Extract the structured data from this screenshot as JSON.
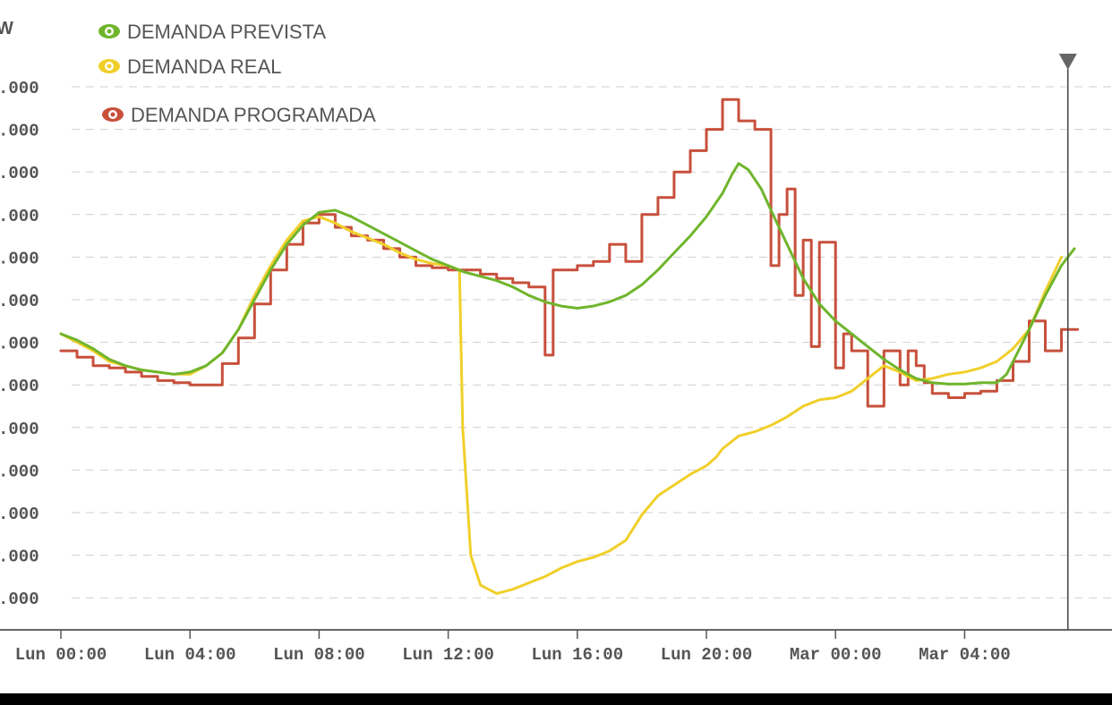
{
  "chart_data": {
    "type": "line",
    "unit_label": "W",
    "y_tick_labels": [
      ".000",
      ".000",
      ".000",
      ".000",
      ".000",
      ".000",
      ".000",
      ".000",
      ".000",
      ".000",
      ".000",
      ".000",
      ".000"
    ],
    "x_tick_labels": [
      "Lun 00:00",
      "Lun 04:00",
      "Lun 08:00",
      "Lun 12:00",
      "Lun 16:00",
      "Lun 20:00",
      "Mar 00:00",
      "Mar 04:00"
    ],
    "x_tick_hours": [
      0,
      4,
      8,
      12,
      16,
      20,
      24,
      28
    ],
    "xlim": [
      0,
      31.5
    ],
    "ylim": [
      1,
      14
    ],
    "grid": true,
    "legend_position": "top-left",
    "cursor_hour": 31.2,
    "series": [
      {
        "name": "DEMANDA PREVISTA",
        "color": "#6fb52c",
        "step": false,
        "x": [
          0,
          0.5,
          1,
          1.5,
          2,
          2.5,
          3,
          3.5,
          4,
          4.5,
          5,
          5.5,
          6,
          6.5,
          7,
          7.5,
          8,
          8.5,
          9,
          9.5,
          10,
          10.5,
          11,
          11.5,
          12,
          12.5,
          13,
          13.5,
          14,
          14.5,
          15,
          15.5,
          16,
          16.5,
          17,
          17.5,
          18,
          18.5,
          19,
          19.5,
          20,
          20.5,
          20.8,
          21,
          21.3,
          21.7,
          22,
          22.5,
          23,
          23.5,
          24,
          24.5,
          25,
          25.5,
          26,
          26.5,
          27,
          27.5,
          28,
          28.5,
          29,
          29.3,
          29.6,
          30,
          30.5,
          31,
          31.4
        ],
        "y": [
          7.7,
          7.55,
          7.35,
          7.1,
          6.95,
          6.85,
          6.8,
          6.75,
          6.8,
          6.95,
          7.25,
          7.8,
          8.5,
          9.2,
          9.8,
          10.25,
          10.55,
          10.6,
          10.45,
          10.25,
          10.05,
          9.85,
          9.65,
          9.45,
          9.3,
          9.15,
          9.05,
          8.95,
          8.8,
          8.6,
          8.45,
          8.35,
          8.3,
          8.35,
          8.45,
          8.6,
          8.85,
          9.2,
          9.6,
          10.0,
          10.45,
          11.0,
          11.45,
          11.7,
          11.55,
          11.1,
          10.6,
          9.8,
          9.0,
          8.4,
          8.0,
          7.7,
          7.4,
          7.1,
          6.85,
          6.65,
          6.55,
          6.52,
          6.52,
          6.55,
          6.55,
          6.75,
          7.2,
          7.8,
          8.6,
          9.3,
          9.7
        ]
      },
      {
        "name": "DEMANDA REAL",
        "color": "#f0cf2a",
        "step": false,
        "x": [
          0,
          0.5,
          1,
          1.5,
          2,
          2.5,
          3,
          3.5,
          4,
          4.5,
          5,
          5.5,
          6,
          6.5,
          7,
          7.5,
          8,
          8.5,
          9,
          9.5,
          10,
          10.5,
          11,
          11.5,
          12,
          12.35,
          12.45,
          12.7,
          13,
          13.5,
          14,
          14.5,
          15,
          15.5,
          16,
          16.5,
          17,
          17.5,
          18,
          18.5,
          19,
          19.5,
          20,
          20.3,
          20.5,
          21,
          21.5,
          22,
          22.5,
          23,
          23.5,
          24,
          24.5,
          25,
          25.5,
          26,
          26.5,
          27,
          27.5,
          28,
          28.5,
          29,
          29.5,
          30,
          30.5,
          31
        ],
        "y": [
          7.7,
          7.5,
          7.3,
          7.05,
          6.95,
          6.85,
          6.8,
          6.75,
          6.75,
          6.95,
          7.25,
          7.8,
          8.6,
          9.3,
          9.9,
          10.35,
          10.45,
          10.3,
          10.1,
          9.95,
          9.8,
          9.6,
          9.45,
          9.35,
          9.3,
          9.2,
          5.5,
          2.5,
          1.8,
          1.6,
          1.7,
          1.85,
          2.0,
          2.2,
          2.35,
          2.45,
          2.6,
          2.85,
          3.45,
          3.9,
          4.15,
          4.4,
          4.6,
          4.8,
          5.0,
          5.3,
          5.4,
          5.55,
          5.75,
          6.0,
          6.15,
          6.2,
          6.35,
          6.65,
          6.95,
          6.8,
          6.6,
          6.65,
          6.75,
          6.8,
          6.9,
          7.05,
          7.35,
          7.8,
          8.7,
          9.5
        ]
      },
      {
        "name": "DEMANDA PROGRAMADA",
        "color": "#c7503b",
        "step": true,
        "x": [
          0,
          0.5,
          1,
          1.5,
          2,
          2.5,
          3,
          3.5,
          4,
          4.5,
          5,
          5.5,
          6,
          6.5,
          7,
          7.5,
          8,
          8.5,
          9,
          9.5,
          10,
          10.5,
          11,
          11.5,
          12,
          12.5,
          13,
          13.5,
          14,
          14.5,
          15,
          15.25,
          15.5,
          16,
          16.5,
          17,
          17.5,
          18,
          18.25,
          18.5,
          19,
          19.5,
          20,
          20.5,
          21,
          21.5,
          22,
          22.25,
          22.5,
          22.75,
          23,
          23.25,
          23.5,
          24,
          24.25,
          24.5,
          25,
          25.5,
          26,
          26.25,
          26.5,
          26.75,
          27,
          27.5,
          28,
          28.5,
          29,
          29.5,
          30,
          30.5,
          31,
          31.25,
          31.5
        ],
        "y": [
          7.3,
          7.15,
          6.95,
          6.9,
          6.8,
          6.7,
          6.6,
          6.55,
          6.5,
          6.5,
          7.0,
          7.6,
          8.4,
          9.2,
          9.8,
          10.3,
          10.5,
          10.2,
          10.0,
          9.9,
          9.7,
          9.5,
          9.3,
          9.25,
          9.2,
          9.2,
          9.1,
          9.0,
          8.9,
          8.8,
          7.2,
          9.2,
          9.2,
          9.3,
          9.4,
          9.8,
          9.4,
          10.5,
          10.5,
          10.9,
          11.5,
          12.0,
          12.5,
          13.2,
          12.7,
          12.5,
          9.3,
          10.5,
          11.1,
          8.6,
          9.9,
          7.4,
          9.85,
          6.9,
          7.7,
          7.3,
          6.0,
          7.3,
          6.5,
          7.3,
          6.95,
          6.55,
          6.3,
          6.2,
          6.3,
          6.35,
          6.6,
          7.05,
          8.0,
          7.3,
          7.8,
          7.8,
          7.8
        ]
      }
    ]
  }
}
